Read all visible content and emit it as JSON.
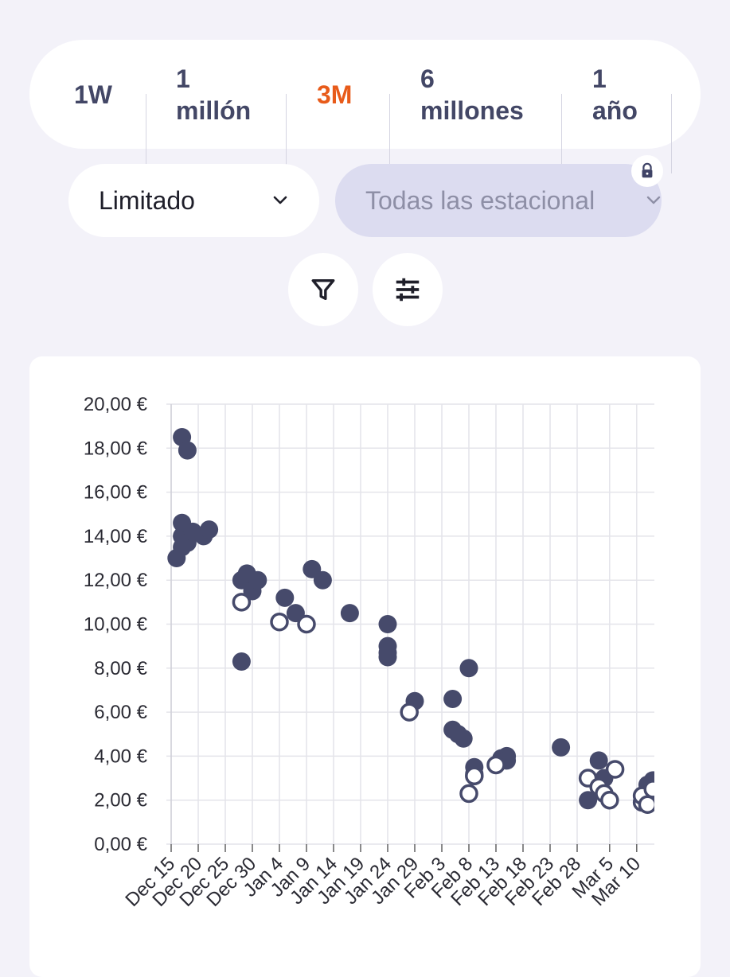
{
  "range_tabs": [
    {
      "lines": [
        "1W"
      ],
      "active": false
    },
    {
      "lines": [
        "1",
        "millón"
      ],
      "active": false
    },
    {
      "lines": [
        "3M"
      ],
      "active": true
    },
    {
      "lines": [
        "6",
        "millones"
      ],
      "active": false
    },
    {
      "lines": [
        "1",
        "año"
      ],
      "active": false
    }
  ],
  "filters": {
    "scope_label": "Limitado",
    "season_label": "Todas las estacional",
    "season_locked": true
  },
  "icons": {
    "filter": "filter-funnel-icon",
    "settings": "sliders-icon",
    "chevron": "chevron-down-icon",
    "lock": "lock-icon"
  },
  "colors": {
    "accent": "#e85b1a",
    "tab_text": "#434766",
    "marker": "#464a6b",
    "season_pill": "#dcdcf0"
  },
  "chart_data": {
    "type": "scatter",
    "title": "",
    "xlabel": "",
    "ylabel": "",
    "y_ticks": [
      "0,00 €",
      "2,00 €",
      "4,00 €",
      "6,00 €",
      "8,00 €",
      "10,00 €",
      "12,00 €",
      "14,00 €",
      "16,00 €",
      "18,00 €",
      "20,00 €"
    ],
    "ylim": [
      0,
      20
    ],
    "x_ticks": [
      "Dec 15",
      "Dec 20",
      "Dec 25",
      "Dec 30",
      "Jan 4",
      "Jan 9",
      "Jan 14",
      "Jan 19",
      "Jan 24",
      "Jan 29",
      "Feb 3",
      "Feb 8",
      "Feb 13",
      "Feb 18",
      "Feb 23",
      "Feb 28",
      "Mar 5",
      "Mar 10"
    ],
    "x_tick_dates": [
      "2023-12-15",
      "2023-12-20",
      "2023-12-25",
      "2023-12-30",
      "2024-01-04",
      "2024-01-09",
      "2024-01-14",
      "2024-01-19",
      "2024-01-24",
      "2024-01-29",
      "2024-02-03",
      "2024-02-08",
      "2024-02-13",
      "2024-02-18",
      "2024-02-23",
      "2024-02-28",
      "2024-03-05",
      "2024-03-10"
    ],
    "xlim": [
      "2023-12-15",
      "2024-03-14"
    ],
    "grid": true,
    "legend": "none",
    "series": [
      {
        "filled": true,
        "points": [
          [
            "2023-12-16",
            13.0
          ],
          [
            "2023-12-17",
            13.5
          ],
          [
            "2023-12-17",
            14.0
          ],
          [
            "2023-12-17",
            14.6
          ],
          [
            "2023-12-18",
            13.7
          ],
          [
            "2023-12-17",
            18.5
          ],
          [
            "2023-12-18",
            17.9
          ],
          [
            "2023-12-19",
            14.2
          ],
          [
            "2023-12-21",
            14.0
          ],
          [
            "2023-12-22",
            14.3
          ],
          [
            "2023-12-28",
            12.0
          ],
          [
            "2023-12-29",
            12.3
          ],
          [
            "2023-12-30",
            11.5
          ],
          [
            "2023-12-31",
            12.0
          ],
          [
            "2023-12-28",
            8.3
          ],
          [
            "2024-01-05",
            11.2
          ],
          [
            "2024-01-07",
            10.5
          ],
          [
            "2024-01-10",
            12.5
          ],
          [
            "2024-01-12",
            12.0
          ],
          [
            "2024-01-17",
            10.5
          ],
          [
            "2024-01-24",
            10.0
          ],
          [
            "2024-01-24",
            9.0
          ],
          [
            "2024-01-24",
            8.5
          ],
          [
            "2024-01-24",
            8.7
          ],
          [
            "2024-01-29",
            6.5
          ],
          [
            "2024-02-05",
            6.6
          ],
          [
            "2024-02-05",
            5.2
          ],
          [
            "2024-02-06",
            5.0
          ],
          [
            "2024-02-07",
            4.8
          ],
          [
            "2024-02-08",
            8.0
          ],
          [
            "2024-02-09",
            3.2
          ],
          [
            "2024-02-09",
            3.5
          ],
          [
            "2024-02-14",
            3.9
          ],
          [
            "2024-02-15",
            4.0
          ],
          [
            "2024-02-15",
            3.8
          ],
          [
            "2024-02-25",
            4.4
          ],
          [
            "2024-03-01",
            2.0
          ],
          [
            "2024-03-03",
            3.8
          ],
          [
            "2024-03-04",
            3.0
          ],
          [
            "2024-03-12",
            2.7
          ],
          [
            "2024-03-13",
            2.9
          ]
        ]
      },
      {
        "filled": false,
        "points": [
          [
            "2023-12-28",
            11.0
          ],
          [
            "2024-01-04",
            10.1
          ],
          [
            "2024-01-09",
            10.0
          ],
          [
            "2024-01-28",
            6.0
          ],
          [
            "2024-02-08",
            2.3
          ],
          [
            "2024-02-09",
            3.1
          ],
          [
            "2024-02-13",
            3.6
          ],
          [
            "2024-03-01",
            3.0
          ],
          [
            "2024-03-03",
            2.6
          ],
          [
            "2024-03-04",
            2.3
          ],
          [
            "2024-03-05",
            2.0
          ],
          [
            "2024-03-06",
            3.4
          ],
          [
            "2024-03-11",
            1.9
          ],
          [
            "2024-03-11",
            2.2
          ],
          [
            "2024-03-12",
            1.8
          ],
          [
            "2024-03-13",
            2.5
          ]
        ]
      }
    ]
  }
}
